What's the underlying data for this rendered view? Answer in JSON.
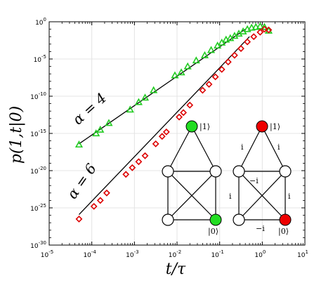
{
  "chart_data": {
    "type": "scatter",
    "title": "",
    "xlabel": "t/τ",
    "ylabel": "p(1,t|0)",
    "xscale": "log",
    "yscale": "log",
    "xlim_exp": [
      -5,
      1
    ],
    "ylim_exp": [
      -30,
      0
    ],
    "x_tick_labels": [
      {
        "base": "10",
        "exp": "-5"
      },
      {
        "base": "10",
        "exp": "-4"
      },
      {
        "base": "10",
        "exp": "-3"
      },
      {
        "base": "10",
        "exp": "-2"
      },
      {
        "base": "10",
        "exp": "-1"
      },
      {
        "base": "10",
        "exp": "0"
      },
      {
        "base": "10",
        "exp": "1"
      }
    ],
    "y_tick_labels": [
      {
        "base": "10",
        "exp": "0"
      },
      {
        "base": "10",
        "exp": "-5"
      },
      {
        "base": "10",
        "exp": "-10"
      },
      {
        "base": "10",
        "exp": "-15"
      },
      {
        "base": "10",
        "exp": "-20"
      },
      {
        "base": "10",
        "exp": "-25"
      },
      {
        "base": "10",
        "exp": "-30"
      }
    ],
    "series": [
      {
        "name": "α = 4",
        "marker": "triangle",
        "color": "#22cc22",
        "points_log10": [
          [
            -4.3,
            -16.5
          ],
          [
            -3.9,
            -15.0
          ],
          [
            -3.8,
            -14.5
          ],
          [
            -3.6,
            -13.6
          ],
          [
            -3.1,
            -11.8
          ],
          [
            -2.9,
            -10.8
          ],
          [
            -2.75,
            -10.2
          ],
          [
            -2.55,
            -9.2
          ],
          [
            -2.05,
            -7.2
          ],
          [
            -1.9,
            -6.8
          ],
          [
            -1.75,
            -6.0
          ],
          [
            -1.55,
            -5.2
          ],
          [
            -1.35,
            -4.5
          ],
          [
            -1.2,
            -3.8
          ],
          [
            -1.05,
            -3.2
          ],
          [
            -0.95,
            -2.8
          ],
          [
            -0.85,
            -2.4
          ],
          [
            -0.75,
            -2.2
          ],
          [
            -0.65,
            -1.9
          ],
          [
            -0.55,
            -1.6
          ],
          [
            -0.45,
            -1.3
          ],
          [
            -0.35,
            -1.0
          ],
          [
            -0.25,
            -0.8
          ],
          [
            -0.15,
            -0.7
          ],
          [
            -0.05,
            -0.6
          ],
          [
            0.05,
            -0.7
          ],
          [
            0.15,
            -1.2
          ]
        ],
        "fit_log10": [
          [
            -4.3,
            -16.4
          ],
          [
            -0.4,
            -1.0
          ]
        ]
      },
      {
        "name": "α = 6",
        "marker": "diamond",
        "color": "#dd0000",
        "points_log10": [
          [
            -4.3,
            -26.5
          ],
          [
            -3.95,
            -24.8
          ],
          [
            -3.8,
            -24.0
          ],
          [
            -3.65,
            -23.0
          ],
          [
            -3.2,
            -20.5
          ],
          [
            -3.05,
            -19.6
          ],
          [
            -2.9,
            -18.8
          ],
          [
            -2.75,
            -18.0
          ],
          [
            -2.5,
            -16.4
          ],
          [
            -2.35,
            -15.4
          ],
          [
            -2.25,
            -14.8
          ],
          [
            -1.95,
            -12.8
          ],
          [
            -1.85,
            -12.2
          ],
          [
            -1.7,
            -11.2
          ],
          [
            -1.4,
            -9.2
          ],
          [
            -1.25,
            -8.4
          ],
          [
            -1.1,
            -7.4
          ],
          [
            -0.95,
            -6.4
          ],
          [
            -0.8,
            -5.4
          ],
          [
            -0.65,
            -4.5
          ],
          [
            -0.5,
            -3.6
          ],
          [
            -0.35,
            -2.7
          ],
          [
            -0.2,
            -2.0
          ],
          [
            -0.05,
            -1.4
          ],
          [
            0.05,
            -1.0
          ],
          [
            0.15,
            -1.1
          ]
        ],
        "fit_log10": [
          [
            -4.3,
            -25.9
          ],
          [
            -0.3,
            -2.0
          ]
        ]
      }
    ],
    "annotations": [
      "α = 4",
      "α = 6"
    ]
  },
  "insets": [
    {
      "node_color": "#22dd22",
      "top_label": "|1⟩",
      "bottom_label": "|0⟩",
      "weights": []
    },
    {
      "node_color": "#ee0000",
      "top_label": "|1⟩",
      "bottom_label": "|0⟩",
      "weights": [
        "i",
        "i",
        "−i",
        "i",
        "i",
        "−i"
      ]
    }
  ]
}
